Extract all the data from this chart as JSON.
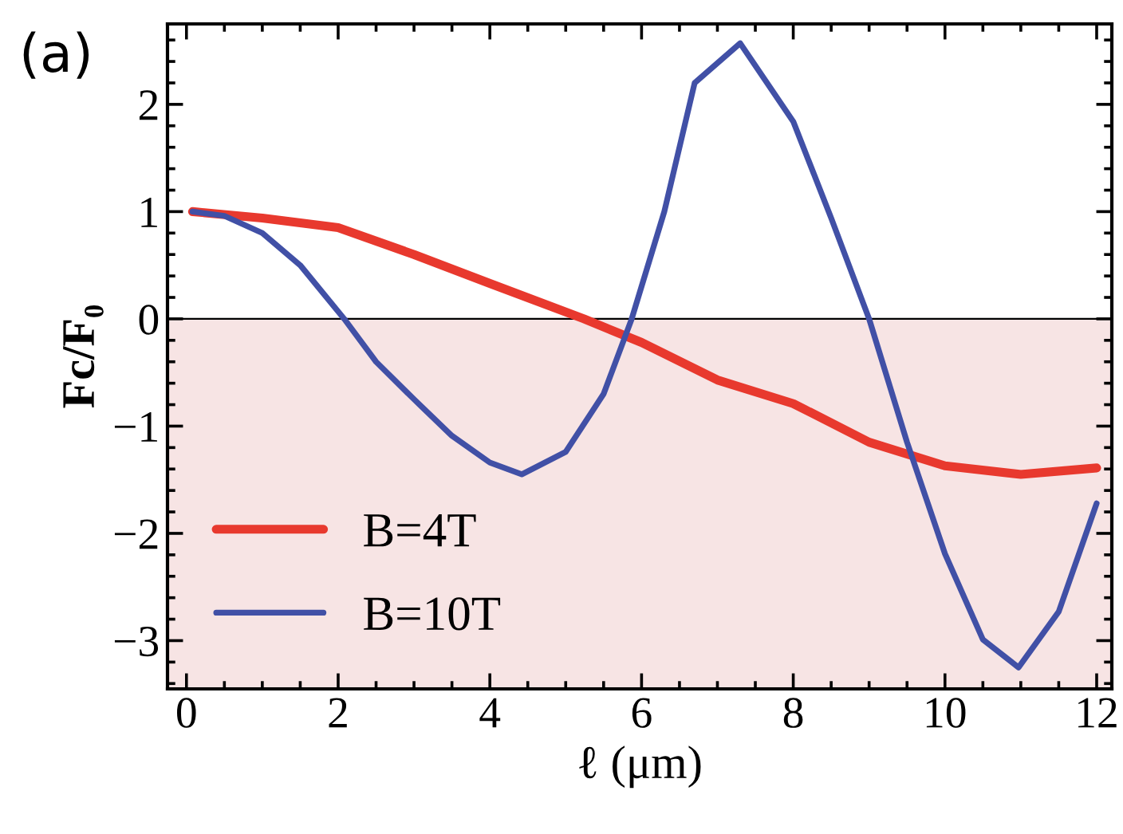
{
  "chart_data": {
    "type": "line",
    "title": "(a)",
    "xlabel": "ℓ (μm)",
    "ylabel": "Fc/F₀",
    "xlim": [
      -0.25,
      12.2
    ],
    "ylim": [
      -3.45,
      2.75
    ],
    "xticks": [
      0,
      2,
      4,
      6,
      8,
      10,
      12
    ],
    "yticks": [
      -3,
      -2,
      -1,
      0,
      1,
      2
    ],
    "grid": false,
    "legend": "bottom left",
    "marker": "none",
    "line_style": "solid",
    "ref_lines": [
      {
        "axis": "y",
        "value": 0,
        "color": "#000000"
      }
    ],
    "bands": [
      {
        "axis": "y",
        "from": -3.45,
        "to": 0,
        "color": "#f7e4e4"
      }
    ],
    "series": [
      {
        "name": "B=4T",
        "color": "#e8392e",
        "x": [
          0.08,
          1,
          2,
          3,
          4,
          5.24,
          6,
          7,
          8,
          9,
          10,
          11,
          12
        ],
        "values": [
          1.0,
          0.94,
          0.85,
          0.6,
          0.33,
          0,
          -0.22,
          -0.57,
          -0.79,
          -1.15,
          -1.37,
          -1.45,
          -1.39
        ]
      },
      {
        "name": "B=10T",
        "color": "#4150a6",
        "x": [
          0.08,
          0.5,
          1,
          1.5,
          2.08,
          2.5,
          3,
          3.5,
          4,
          4.42,
          5,
          5.5,
          5.87,
          6.3,
          6.7,
          7.3,
          8,
          8.5,
          9.0,
          9.5,
          10,
          10.5,
          10.97,
          11.5,
          12
        ],
        "values": [
          1.0,
          0.96,
          0.8,
          0.5,
          0,
          -0.4,
          -0.75,
          -1.09,
          -1.34,
          -1.45,
          -1.24,
          -0.7,
          0,
          1.0,
          2.2,
          2.57,
          1.84,
          0.94,
          0,
          -1.15,
          -2.19,
          -2.99,
          -3.25,
          -2.73,
          -1.72
        ]
      }
    ]
  }
}
